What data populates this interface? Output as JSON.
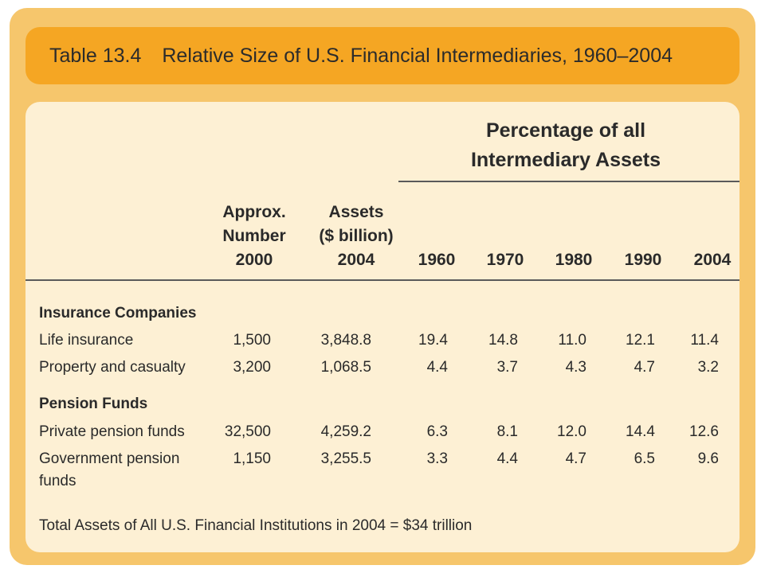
{
  "table": {
    "number": "Table 13.4",
    "title": "Relative Size of U.S. Financial Intermediaries, 1960–2004",
    "header": {
      "group_line1": "Percentage of all",
      "group_line2": "Intermediary Assets",
      "approx_line1": "Approx.",
      "approx_line2": "Number",
      "approx_line3": "2000",
      "assets_line1": "Assets",
      "assets_line2": "($ billion)",
      "assets_line3": "2004",
      "years": [
        "1960",
        "1970",
        "1980",
        "1990",
        "2004"
      ]
    },
    "sections": [
      {
        "title": "Insurance Companies",
        "rows": [
          {
            "label": "Life insurance",
            "label2": "",
            "number": "1,500",
            "assets": "3,848.8",
            "pcts": [
              "19.4",
              "14.8",
              "11.0",
              "12.1",
              "11.4"
            ]
          },
          {
            "label": "Property and casualty",
            "label2": "",
            "number": "3,200",
            "assets": "1,068.5",
            "pcts": [
              "4.4",
              "3.7",
              "4.3",
              "4.7",
              "3.2"
            ]
          }
        ]
      },
      {
        "title": "Pension Funds",
        "rows": [
          {
            "label": "Private pension funds",
            "label2": "",
            "number": "32,500",
            "assets": "4,259.2",
            "pcts": [
              "6.3",
              "8.1",
              "12.0",
              "14.4",
              "12.6"
            ]
          },
          {
            "label": "Government pension",
            "label2": "funds",
            "number": "1,150",
            "assets": "3,255.5",
            "pcts": [
              "3.3",
              "4.4",
              "4.7",
              "6.5",
              "9.6"
            ]
          }
        ]
      }
    ],
    "footnote": "Total Assets of All U.S. Financial Institutions in 2004 = $34 trillion"
  }
}
